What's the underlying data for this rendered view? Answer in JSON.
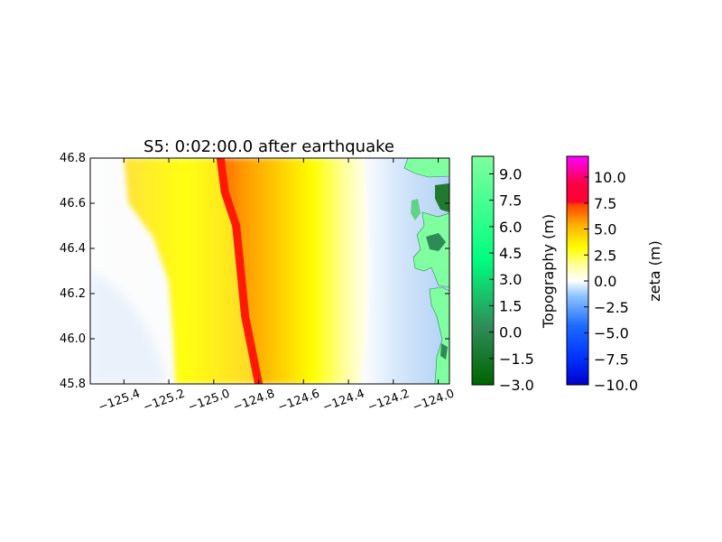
{
  "chart_data": {
    "type": "heatmap",
    "title": "S5: 0:02:00.0 after earthquake",
    "xlabel": "",
    "ylabel": "",
    "xlim": [
      -125.55,
      -123.95
    ],
    "ylim": [
      45.8,
      46.8
    ],
    "x_ticks": [
      -125.4,
      -125.2,
      -125.0,
      -124.8,
      -124.6,
      -124.4,
      -124.2,
      -124.0
    ],
    "x_tick_labels": [
      "−125.4",
      "−125.2",
      "−125.0",
      "−124.8",
      "−124.6",
      "−124.4",
      "−124.2",
      "−124.0"
    ],
    "y_ticks": [
      45.8,
      46.0,
      46.2,
      46.4,
      46.6,
      46.8
    ],
    "y_tick_labels": [
      "45.8",
      "46.0",
      "46.2",
      "46.4",
      "46.6",
      "46.8"
    ],
    "field": {
      "name": "zeta",
      "front_trough": [
        [
          46.8,
          -125.4
        ],
        [
          46.6,
          -125.38
        ],
        [
          46.45,
          -125.27
        ],
        [
          46.25,
          -125.2
        ],
        [
          46.0,
          -125.18
        ],
        [
          45.8,
          -125.17
        ]
      ],
      "red_crest": [
        [
          46.8,
          -124.97
        ],
        [
          46.65,
          -124.95
        ],
        [
          46.5,
          -124.9
        ],
        [
          46.3,
          -124.88
        ],
        [
          46.1,
          -124.86
        ],
        [
          45.9,
          -124.82
        ],
        [
          45.8,
          -124.8
        ]
      ],
      "leading_edge": [
        [
          46.8,
          -124.32
        ],
        [
          46.6,
          -124.31
        ],
        [
          46.4,
          -124.3
        ],
        [
          46.2,
          -124.3
        ],
        [
          46.0,
          -124.31
        ],
        [
          45.8,
          -124.34
        ]
      ]
    },
    "colorbars": [
      {
        "label": "Topography (m)",
        "range": [
          -3.0,
          10.0
        ],
        "tick_values": [
          -3.0,
          -1.5,
          0.0,
          1.5,
          3.0,
          4.5,
          6.0,
          7.5,
          9.0
        ],
        "tick_labels": [
          "−3.0",
          "−1.5",
          "0.0",
          "1.5",
          "3.0",
          "4.5",
          "6.0",
          "7.5",
          "9.0"
        ],
        "colors": [
          "#006400",
          "#2e8b57",
          "#00ff7f",
          "#7fff9f"
        ]
      },
      {
        "label": "zeta (m)",
        "range": [
          -10.0,
          12.0
        ],
        "tick_values": [
          -10.0,
          -7.5,
          -5.0,
          -2.5,
          0.0,
          2.5,
          5.0,
          7.5,
          10.0
        ],
        "tick_labels": [
          "−10.0",
          "−7.5",
          "−5.0",
          "−2.5",
          "0.0",
          "2.5",
          "5.0",
          "7.5",
          "10.0"
        ],
        "colors": [
          "#0000cc",
          "#1e6bff",
          "#8fc4ff",
          "#ffffff",
          "#ffff00",
          "#ffb000",
          "#ff3300",
          "#ff0055",
          "#ff00ff"
        ]
      }
    ]
  }
}
